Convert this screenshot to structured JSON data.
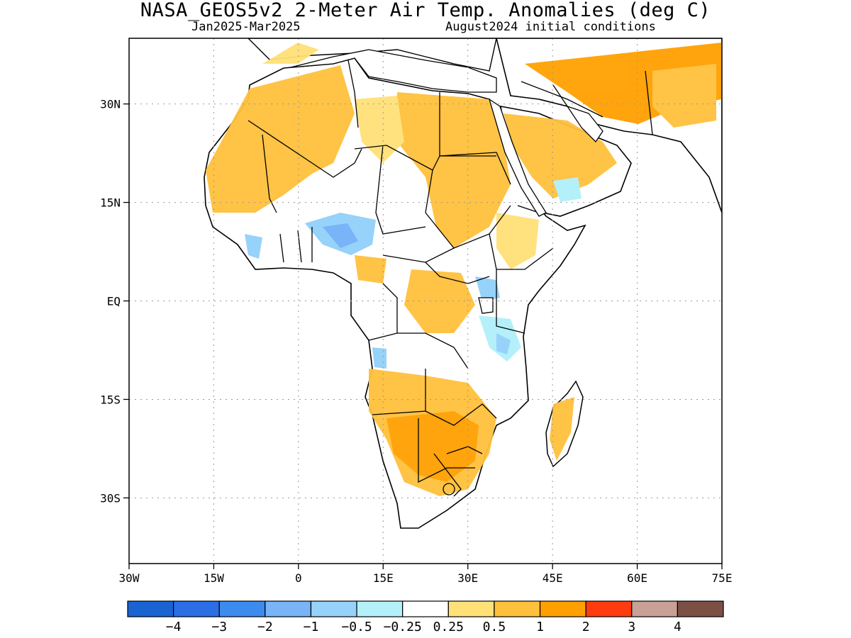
{
  "header": {
    "title": "NASA_GEOS5v2 2-Meter Air Temp. Anomalies (deg C)",
    "period": "Jan2025-Mar2025",
    "init": "August2024 initial conditions"
  },
  "map": {
    "lon_range": [
      -30,
      75
    ],
    "lat_range": [
      -40,
      40
    ],
    "lon_ticks": [
      {
        "value": -30,
        "label": "30W"
      },
      {
        "value": -15,
        "label": "15W"
      },
      {
        "value": 0,
        "label": "0"
      },
      {
        "value": 15,
        "label": "15E"
      },
      {
        "value": 30,
        "label": "30E"
      },
      {
        "value": 45,
        "label": "45E"
      },
      {
        "value": 60,
        "label": "60E"
      },
      {
        "value": 75,
        "label": "75E"
      }
    ],
    "lat_ticks": [
      {
        "value": 30,
        "label": "30N"
      },
      {
        "value": 15,
        "label": "15N"
      },
      {
        "value": 0,
        "label": "EQ"
      },
      {
        "value": -15,
        "label": "15S"
      },
      {
        "value": -30,
        "label": "30S"
      }
    ],
    "gridlines": "dotted"
  },
  "colorbar": {
    "colors": [
      "#1964d2",
      "#2a6fe6",
      "#3c8cf0",
      "#78b4f7",
      "#96d2fa",
      "#b4f0fa",
      "#ffffff",
      "#ffe178",
      "#ffc03c",
      "#ffa000",
      "#ff3c0f",
      "#c8a096",
      "#7d5046"
    ],
    "labels": [
      "-4",
      "-3",
      "-2",
      "-1",
      "-0.5",
      "-0.25",
      "0.25",
      "0.5",
      "1",
      "2",
      "3",
      "4"
    ]
  }
}
